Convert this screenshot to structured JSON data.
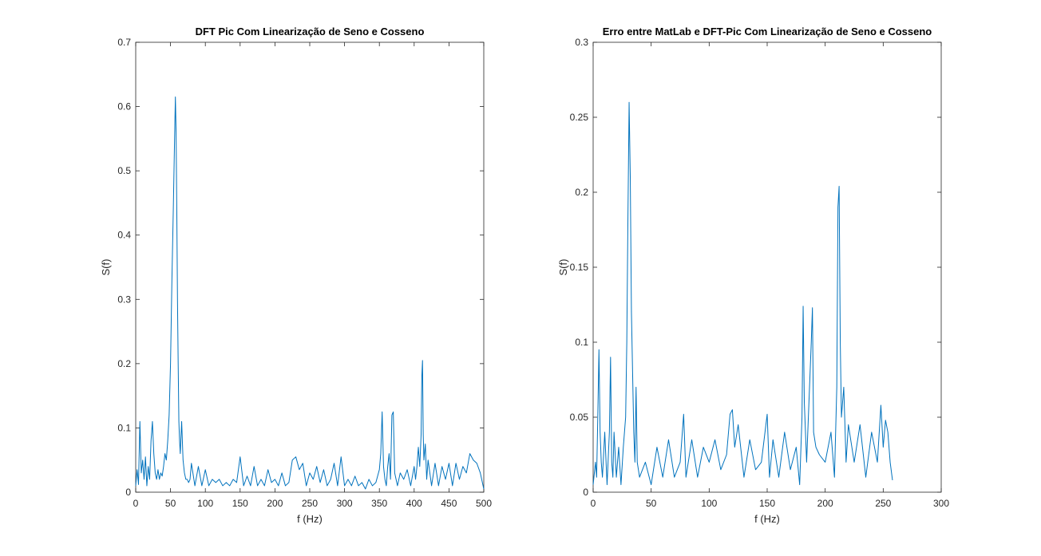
{
  "chart_data": [
    {
      "type": "line",
      "title": "DFT Pic Com Linearização de Seno e Cosseno",
      "xlabel": "f (Hz)",
      "ylabel": "S(f)",
      "xlim": [
        0,
        500
      ],
      "ylim": [
        0,
        0.7
      ],
      "xticks": [
        0,
        50,
        100,
        150,
        200,
        250,
        300,
        350,
        400,
        450,
        500
      ],
      "yticks": [
        0,
        0.1,
        0.2,
        0.3,
        0.4,
        0.5,
        0.6,
        0.7
      ],
      "xtick_labels": [
        "0",
        "50",
        "100",
        "150",
        "200",
        "250",
        "300",
        "350",
        "400",
        "450",
        "500"
      ],
      "ytick_labels": [
        "0",
        "0.1",
        "0.2",
        "0.3",
        "0.4",
        "0.5",
        "0.6",
        "0.7"
      ],
      "grid": false,
      "color": "#0072BD",
      "series": [
        {
          "x": [
            0,
            2,
            4,
            6,
            8,
            10,
            12,
            14,
            16,
            18,
            20,
            22,
            24,
            26,
            28,
            30,
            32,
            34,
            36,
            38,
            40,
            42,
            44,
            46,
            48,
            50,
            52,
            54,
            56,
            57,
            58,
            59,
            60,
            61,
            62,
            63,
            64,
            66,
            68,
            70,
            72,
            74,
            76,
            78,
            80,
            85,
            90,
            95,
            100,
            105,
            110,
            115,
            120,
            125,
            130,
            135,
            140,
            145,
            150,
            155,
            160,
            165,
            170,
            175,
            180,
            185,
            190,
            195,
            200,
            205,
            210,
            215,
            220,
            225,
            230,
            235,
            240,
            245,
            250,
            255,
            260,
            265,
            270,
            275,
            280,
            285,
            290,
            295,
            300,
            305,
            310,
            315,
            320,
            325,
            330,
            335,
            340,
            345,
            350,
            352,
            354,
            356,
            358,
            360,
            362,
            364,
            366,
            368,
            370,
            372,
            374,
            376,
            380,
            385,
            390,
            395,
            400,
            402,
            404,
            406,
            408,
            410,
            411,
            412,
            413,
            414,
            416,
            418,
            420,
            425,
            430,
            435,
            440,
            445,
            450,
            455,
            460,
            465,
            470,
            475,
            480,
            485,
            490,
            495,
            500
          ],
          "y": [
            0.01,
            0.035,
            0.012,
            0.11,
            0.03,
            0.05,
            0.02,
            0.055,
            0.01,
            0.04,
            0.02,
            0.08,
            0.11,
            0.06,
            0.03,
            0.02,
            0.035,
            0.02,
            0.03,
            0.025,
            0.04,
            0.06,
            0.05,
            0.08,
            0.12,
            0.2,
            0.33,
            0.44,
            0.56,
            0.615,
            0.56,
            0.44,
            0.3,
            0.2,
            0.11,
            0.08,
            0.06,
            0.11,
            0.05,
            0.03,
            0.02,
            0.02,
            0.015,
            0.02,
            0.045,
            0.01,
            0.04,
            0.01,
            0.035,
            0.01,
            0.02,
            0.015,
            0.02,
            0.01,
            0.015,
            0.01,
            0.02,
            0.015,
            0.055,
            0.01,
            0.025,
            0.01,
            0.04,
            0.01,
            0.02,
            0.01,
            0.035,
            0.015,
            0.02,
            0.01,
            0.03,
            0.01,
            0.015,
            0.05,
            0.055,
            0.035,
            0.045,
            0.01,
            0.03,
            0.02,
            0.04,
            0.015,
            0.035,
            0.01,
            0.02,
            0.045,
            0.01,
            0.055,
            0.01,
            0.02,
            0.01,
            0.025,
            0.01,
            0.015,
            0.005,
            0.02,
            0.01,
            0.015,
            0.035,
            0.06,
            0.125,
            0.04,
            0.02,
            0.01,
            0.04,
            0.06,
            0.02,
            0.12,
            0.125,
            0.03,
            0.02,
            0.01,
            0.03,
            0.02,
            0.035,
            0.01,
            0.04,
            0.02,
            0.04,
            0.07,
            0.04,
            0.09,
            0.18,
            0.205,
            0.09,
            0.05,
            0.075,
            0.02,
            0.05,
            0.01,
            0.045,
            0.01,
            0.04,
            0.02,
            0.045,
            0.01,
            0.045,
            0.02,
            0.04,
            0.03,
            0.06,
            0.05,
            0.045,
            0.03,
            0.005
          ]
        }
      ]
    },
    {
      "type": "line",
      "title": "Erro entre MatLab e DFT-Pic Com Linearização de Seno e Cosseno",
      "xlabel": "f (Hz)",
      "ylabel": "S(f)",
      "xlim": [
        0,
        300
      ],
      "ylim": [
        0,
        0.3
      ],
      "xticks": [
        0,
        50,
        100,
        150,
        200,
        250,
        300
      ],
      "yticks": [
        0,
        0.05,
        0.1,
        0.15,
        0.2,
        0.25,
        0.3
      ],
      "xtick_labels": [
        "0",
        "50",
        "100",
        "150",
        "200",
        "250",
        "300"
      ],
      "ytick_labels": [
        "0",
        "0.05",
        "0.1",
        "0.15",
        "0.2",
        "0.25",
        "0.3"
      ],
      "grid": false,
      "color": "#0072BD",
      "series": [
        {
          "x": [
            0,
            2,
            3,
            4,
            5,
            6,
            7,
            8,
            10,
            12,
            14,
            15,
            16,
            17,
            18,
            20,
            22,
            24,
            26,
            28,
            29,
            30,
            31,
            32,
            33,
            34,
            35,
            36,
            37,
            38,
            40,
            45,
            50,
            55,
            60,
            65,
            70,
            75,
            78,
            80,
            85,
            90,
            95,
            100,
            105,
            110,
            115,
            118,
            120,
            122,
            125,
            130,
            135,
            140,
            145,
            150,
            152,
            155,
            160,
            165,
            170,
            175,
            178,
            180,
            181,
            182,
            184,
            186,
            188,
            189,
            190,
            192,
            195,
            200,
            205,
            208,
            210,
            211,
            212,
            213,
            214,
            216,
            218,
            220,
            225,
            230,
            235,
            240,
            245,
            248,
            250,
            252,
            254,
            256,
            258
          ],
          "y": [
            0.005,
            0.02,
            0.01,
            0.05,
            0.095,
            0.04,
            0.02,
            0.01,
            0.04,
            0.005,
            0.04,
            0.09,
            0.02,
            0.01,
            0.04,
            0.01,
            0.03,
            0.005,
            0.03,
            0.05,
            0.1,
            0.185,
            0.26,
            0.21,
            0.12,
            0.08,
            0.04,
            0.02,
            0.07,
            0.02,
            0.01,
            0.02,
            0.005,
            0.03,
            0.01,
            0.035,
            0.01,
            0.02,
            0.052,
            0.01,
            0.035,
            0.01,
            0.03,
            0.02,
            0.035,
            0.015,
            0.025,
            0.052,
            0.055,
            0.03,
            0.045,
            0.01,
            0.035,
            0.015,
            0.02,
            0.052,
            0.01,
            0.035,
            0.01,
            0.04,
            0.015,
            0.03,
            0.005,
            0.05,
            0.124,
            0.06,
            0.02,
            0.06,
            0.1,
            0.123,
            0.04,
            0.03,
            0.025,
            0.02,
            0.04,
            0.01,
            0.07,
            0.19,
            0.204,
            0.1,
            0.05,
            0.07,
            0.02,
            0.045,
            0.02,
            0.045,
            0.01,
            0.04,
            0.02,
            0.058,
            0.03,
            0.048,
            0.04,
            0.02,
            0.008
          ]
        }
      ]
    }
  ]
}
